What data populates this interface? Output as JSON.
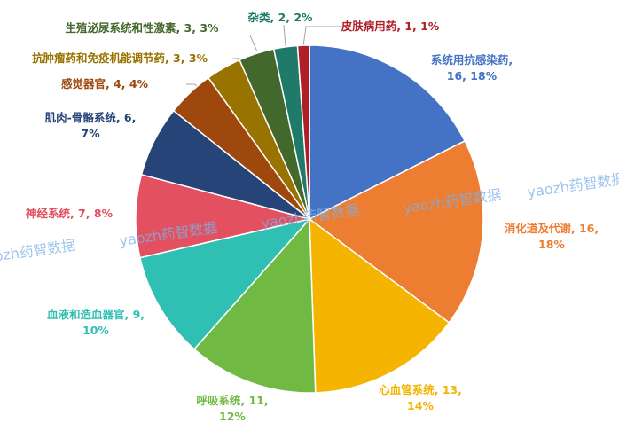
{
  "chart_data": {
    "type": "pie",
    "categories": [
      [
        "系统用抗感染药,",
        "16, 18%"
      ],
      [
        "消化道及代谢, 16,",
        "18%"
      ],
      [
        "心血管系统, 13,",
        "14%"
      ],
      [
        "呼吸系统, 11,",
        "12%"
      ],
      [
        "血液和造血器官, 9,",
        "10%"
      ],
      [
        "神经系统, 7, 8%"
      ],
      [
        "肌肉-骨骼系统, 6,",
        "7%"
      ],
      [
        "感觉器官, 4, 4%"
      ],
      [
        "抗肿瘤药和免疫机能调节药, 3, 3%"
      ],
      [
        "生殖泌尿系统和性激素, 3, 3%"
      ],
      [
        "杂类, 2, 2%"
      ],
      [
        "皮肤病用药, 1, 1%"
      ]
    ],
    "values": [
      16,
      16,
      13,
      11,
      9,
      7,
      6,
      4,
      3,
      3,
      2,
      1
    ],
    "colors": [
      "#4472c4",
      "#ed7d31",
      "#f4b400",
      "#70b943",
      "#2fbfb3",
      "#e3505f",
      "#264478",
      "#9e480e",
      "#997300",
      "#43682b",
      "#1f7a6a",
      "#b01e28"
    ],
    "watermark": "yaozh药智数据"
  }
}
